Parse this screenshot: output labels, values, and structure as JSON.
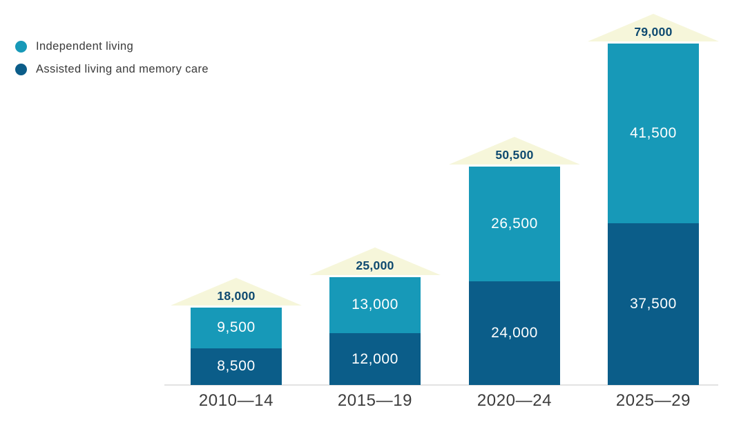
{
  "legend": {
    "items": [
      {
        "label": "Independent living",
        "color": "#1799B8"
      },
      {
        "label": "Assisted living and memory care",
        "color": "#0B5D89"
      }
    ]
  },
  "chart_data": {
    "type": "bar",
    "stacked": true,
    "categories": [
      "2010—14",
      "2015—19",
      "2020—24",
      "2025—29"
    ],
    "series": [
      {
        "name": "Assisted living and memory care",
        "color": "#0B5D89",
        "values": [
          8500,
          12000,
          24000,
          37500
        ]
      },
      {
        "name": "Independent living",
        "color": "#1799B8",
        "values": [
          9500,
          13000,
          26500,
          41500
        ]
      }
    ],
    "totals": [
      18000,
      25000,
      50500,
      79000
    ],
    "marker_shape": "up-arrow",
    "marker_color": "#F6F6DA",
    "total_label_color": "#0F4A70",
    "value_label_color": "#FFFFFF",
    "axis_label_color": "#3C3C3C",
    "baseline_color": "#E2E2E2",
    "legend_position": "top-left",
    "grid": false,
    "ylim": [
      0,
      79000
    ]
  }
}
